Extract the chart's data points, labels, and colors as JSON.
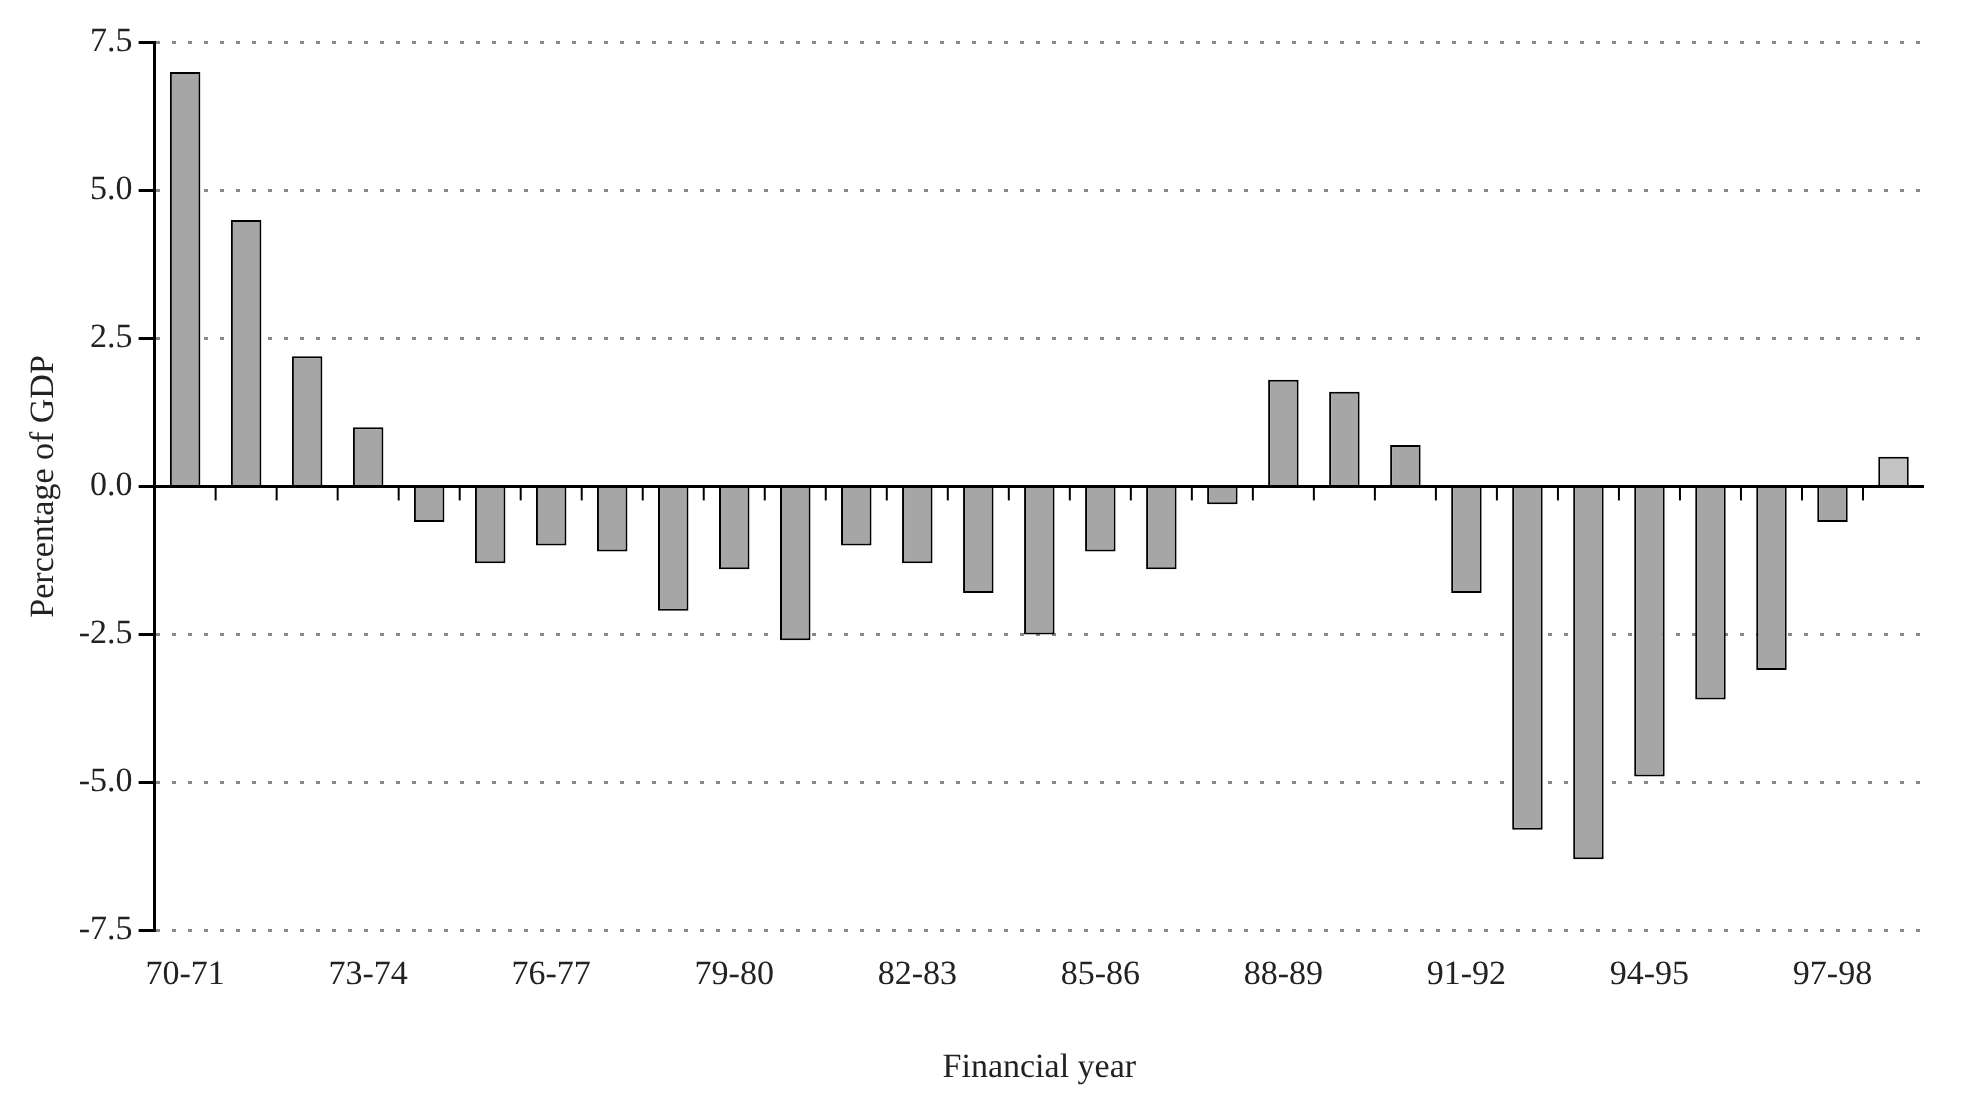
{
  "chart_data": {
    "type": "bar",
    "xlabel": "Financial year",
    "ylabel": "Percentage of GDP",
    "categories": [
      "70-71",
      null,
      null,
      "73-74",
      null,
      null,
      "76-77",
      null,
      null,
      "79-80",
      null,
      null,
      "82-83",
      null,
      null,
      "85-86",
      null,
      null,
      "88-89",
      null,
      null,
      "91-92",
      null,
      null,
      "94-95",
      null,
      null,
      "97-98",
      null
    ],
    "values": [
      7.0,
      4.5,
      2.2,
      1.0,
      -0.6,
      -1.3,
      -1.0,
      -1.1,
      -2.1,
      -1.4,
      -2.6,
      -1.0,
      -1.3,
      -1.8,
      -2.5,
      -1.1,
      -1.4,
      -0.3,
      1.8,
      1.6,
      0.7,
      -1.8,
      -5.8,
      -6.3,
      -4.9,
      -3.6,
      -3.1,
      -0.6,
      0.5
    ],
    "colors": [
      "#a6a6a6",
      "#a6a6a6",
      "#a6a6a6",
      "#a6a6a6",
      "#a6a6a6",
      "#a6a6a6",
      "#a6a6a6",
      "#a6a6a6",
      "#a6a6a6",
      "#a6a6a6",
      "#a6a6a6",
      "#a6a6a6",
      "#a6a6a6",
      "#a6a6a6",
      "#a6a6a6",
      "#a6a6a6",
      "#a6a6a6",
      "#a6a6a6",
      "#a6a6a6",
      "#a6a6a6",
      "#a6a6a6",
      "#a6a6a6",
      "#a6a6a6",
      "#a6a6a6",
      "#a6a6a6",
      "#a6a6a6",
      "#a6a6a6",
      "#a6a6a6",
      "#c4c4c4"
    ],
    "ylim": [
      -7.5,
      7.5
    ],
    "yticks": [
      {
        "value": -7.5,
        "label": "-7.5"
      },
      {
        "value": -5,
        "label": "-5.0"
      },
      {
        "value": -2.5,
        "label": "-2.5"
      },
      {
        "value": 0,
        "label": "0.0"
      },
      {
        "value": 2.5,
        "label": "2.5"
      },
      {
        "value": 5,
        "label": "5.0"
      },
      {
        "value": 7.5,
        "label": "7.5"
      }
    ],
    "grid": "y",
    "legend": false
  }
}
